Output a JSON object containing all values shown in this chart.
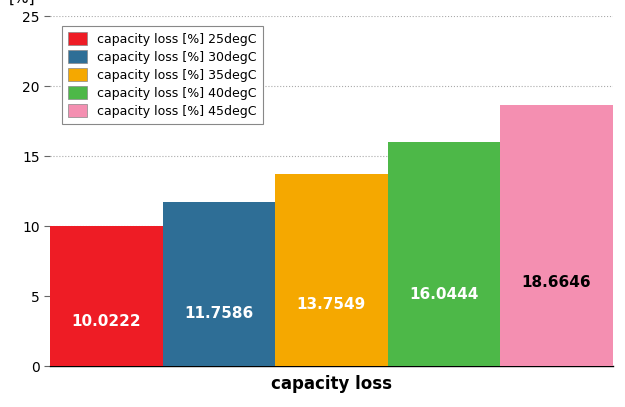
{
  "categories": [
    "25degC",
    "30degC",
    "35degC",
    "40degC",
    "45degC"
  ],
  "values": [
    10.0222,
    11.7586,
    13.7549,
    16.0444,
    18.6646
  ],
  "bar_colors": [
    "#ee1c25",
    "#2e6e96",
    "#f5a800",
    "#4db848",
    "#f48fb1"
  ],
  "legend_colors": [
    "#ee1c25",
    "#2e6e96",
    "#f5a800",
    "#4db848",
    "#f48fb1"
  ],
  "legend_labels": [
    "capacity loss [%] 25degC",
    "capacity loss [%] 30degC",
    "capacity loss [%] 35degC",
    "capacity loss [%] 40degC",
    "capacity loss [%] 45degC"
  ],
  "xlabel": "capacity loss",
  "ylabel": "[%]",
  "ylim": [
    0,
    25
  ],
  "yticks": [
    0,
    5,
    10,
    15,
    20,
    25
  ],
  "title": "",
  "label_colors": [
    "white",
    "white",
    "white",
    "white",
    "black"
  ],
  "label_fontsize": 11,
  "background_color": "#ffffff",
  "grid_color": "#aaaaaa"
}
